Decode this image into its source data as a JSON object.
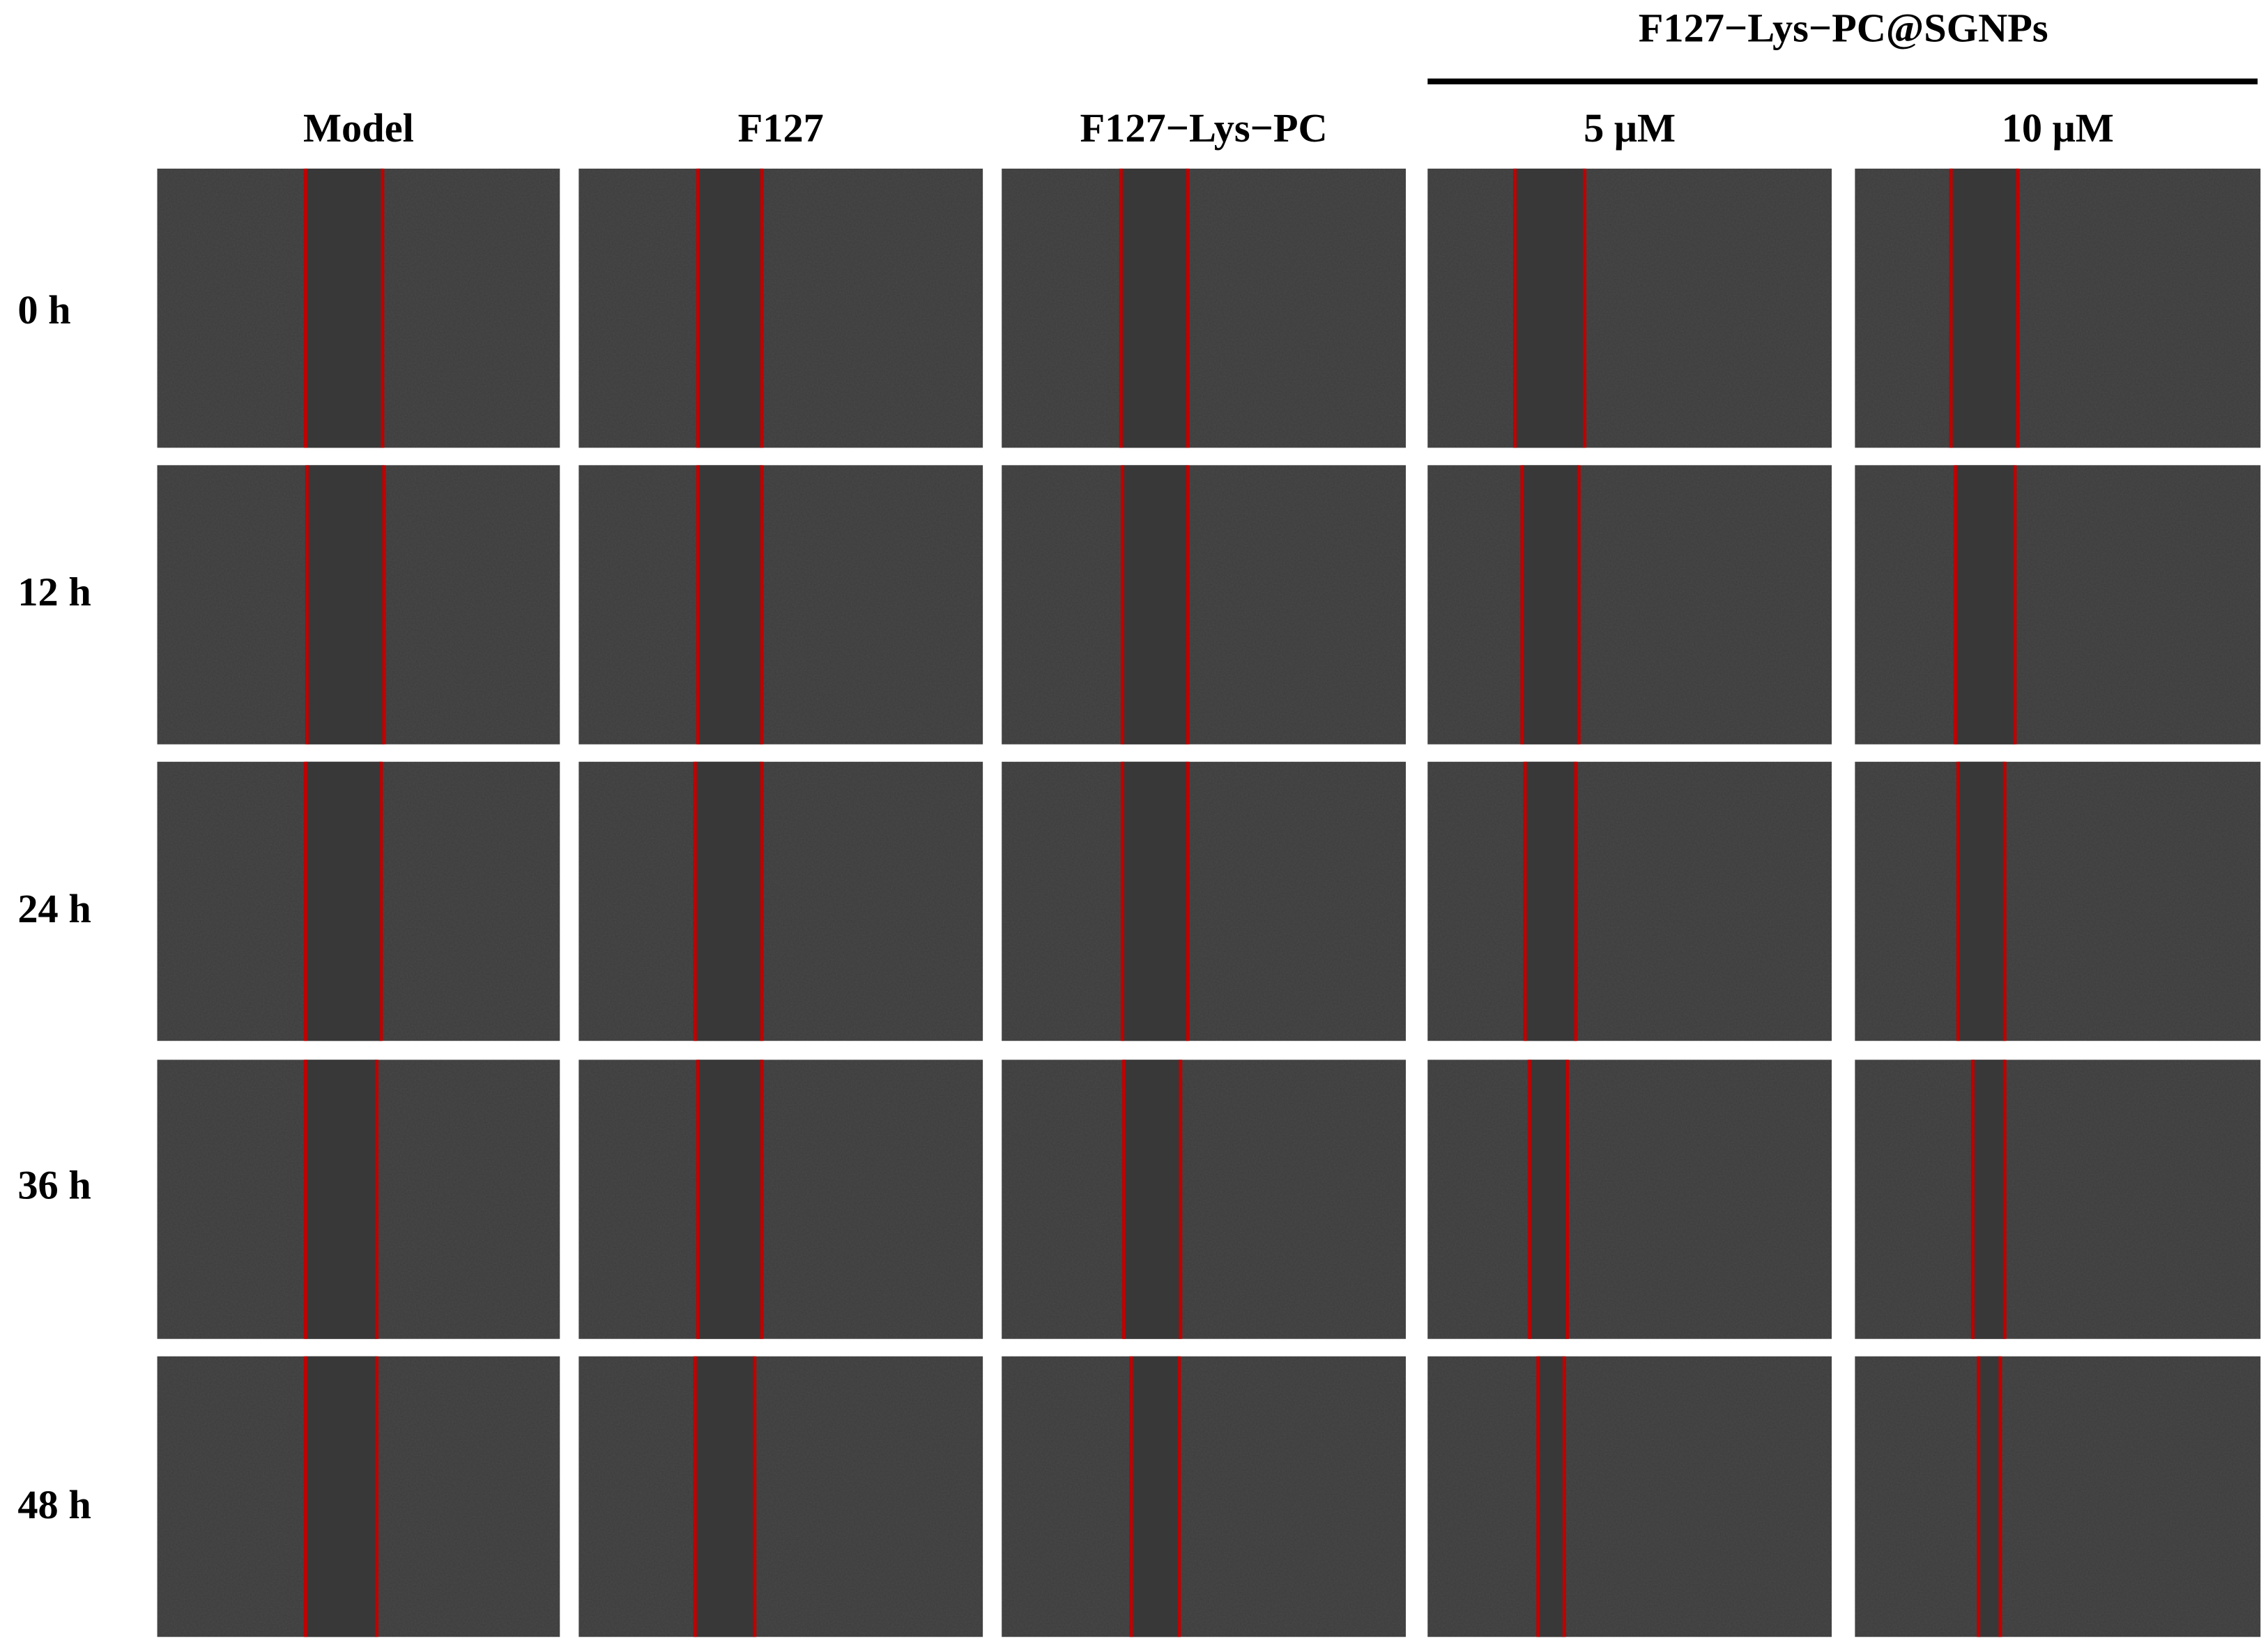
{
  "header": {
    "group_label": "F127−Lys−PC@SGNPs",
    "columns": [
      "Model",
      "F127",
      "F127−Lys−PC",
      "5 μM",
      "10 μM"
    ]
  },
  "rows": [
    "0 h",
    "12 h",
    "24 h",
    "36 h",
    "48 h"
  ]
}
